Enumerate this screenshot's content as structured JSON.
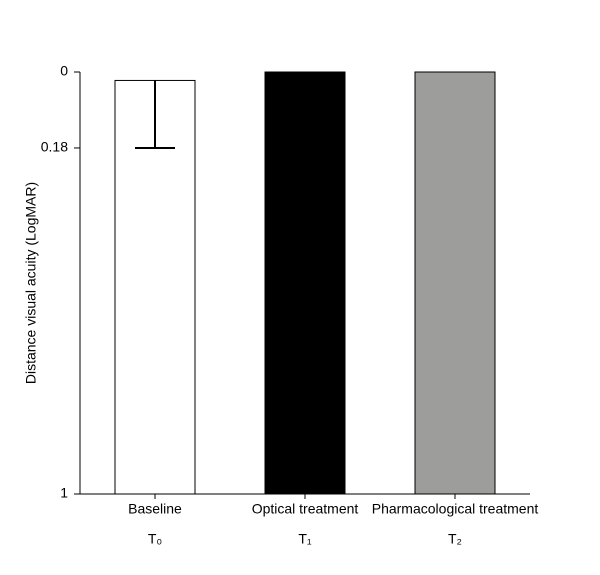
{
  "chart_data": {
    "type": "bar",
    "y_label": "Distance visual acuity (LogMAR)",
    "categories": [
      "Baseline",
      "Optical treatment",
      "Pharmacological treatment"
    ],
    "sublabels": [
      "T₀",
      "T₁",
      "T₂"
    ],
    "values": [
      0.02,
      0,
      0
    ],
    "errors": [
      0.16,
      null,
      null
    ],
    "colors": [
      "#ffffff",
      "#000000",
      "#9d9d9c"
    ],
    "ylim": [
      1,
      0
    ],
    "y_inverted": true,
    "yticks": [
      0,
      0.18,
      1
    ],
    "grid": false
  }
}
